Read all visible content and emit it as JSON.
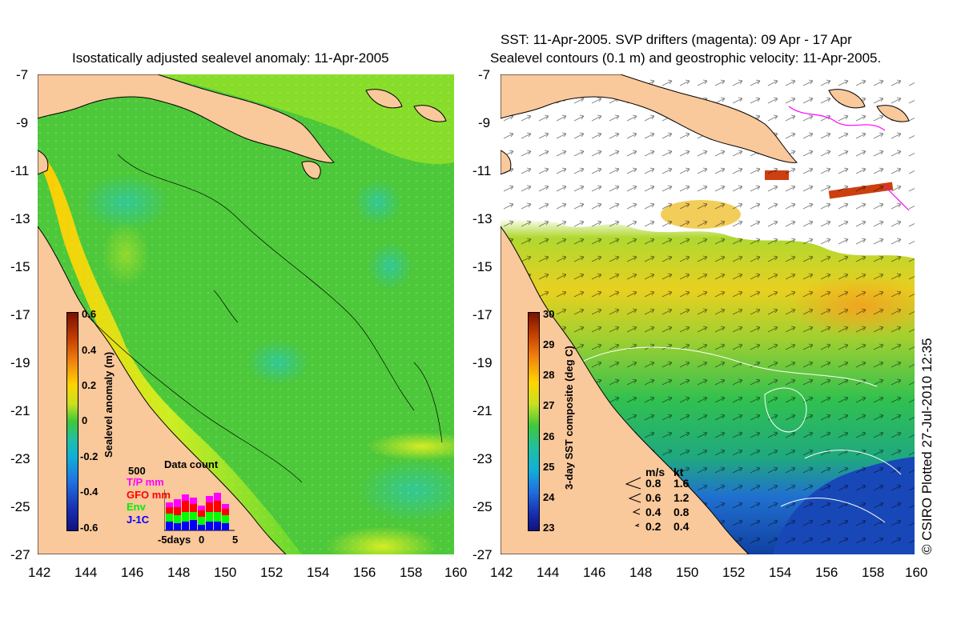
{
  "left_panel": {
    "title": "Isostatically adjusted sealevel anomaly: 11-Apr-2005",
    "y_ticks": [
      "-7",
      "-9",
      "-11",
      "-13",
      "-15",
      "-17",
      "-19",
      "-21",
      "-23",
      "-25",
      "-27"
    ],
    "x_ticks": [
      "142",
      "144",
      "146",
      "148",
      "150",
      "152",
      "154",
      "156",
      "158",
      "160"
    ],
    "colorbar": {
      "label": "Sealevel anomaly (m)",
      "ticks": [
        "0.6",
        "0.4",
        "0.2",
        "0",
        "-0.2",
        "-0.4",
        "-0.6"
      ]
    },
    "data_count": {
      "title": "Data count",
      "max_label": "500",
      "legend": [
        {
          "label": "T/P mm",
          "color": "#ff00ff"
        },
        {
          "label": "GFO mm",
          "color": "#ff0000"
        },
        {
          "label": "Env",
          "color": "#00ff00"
        },
        {
          "label": "J-1C",
          "color": "#0000ff"
        }
      ],
      "x_left": "-5days",
      "x_mid": "0",
      "x_right": "5"
    }
  },
  "right_panel": {
    "title_line1": "SST: 11-Apr-2005. SVP drifters (magenta): 09 Apr - 17 Apr",
    "title_line2": "Sealevel contours (0.1 m) and geostrophic velocity: 11-Apr-2005.",
    "y_ticks": [
      "-7",
      "-9",
      "-11",
      "-13",
      "-15",
      "-17",
      "-19",
      "-21",
      "-23",
      "-25",
      "-27"
    ],
    "x_ticks": [
      "142",
      "144",
      "146",
      "148",
      "150",
      "152",
      "154",
      "156",
      "158",
      "160"
    ],
    "colorbar": {
      "label": "3-day SST composite (deg C)",
      "ticks": [
        "30",
        "29",
        "28",
        "27",
        "26",
        "25",
        "24",
        "23"
      ]
    },
    "velocity_legend": {
      "header_ms": "m/s",
      "header_kt": "kt",
      "rows": [
        {
          "ms": "0.8",
          "kt": "1.6"
        },
        {
          "ms": "0.6",
          "kt": "1.2"
        },
        {
          "ms": "0.4",
          "kt": "0.8"
        },
        {
          "ms": "0.2",
          "kt": "0.4"
        }
      ]
    }
  },
  "copyright": "© CSIRO Plotted 27-Jul-2010 12:35",
  "colors": {
    "land": "#f9c89b",
    "ocean_green": "#4ccc33",
    "coast_yellow": "#ccee22",
    "warm_yellow": "#ffd400",
    "cold_blue": "#1c5ed6"
  }
}
